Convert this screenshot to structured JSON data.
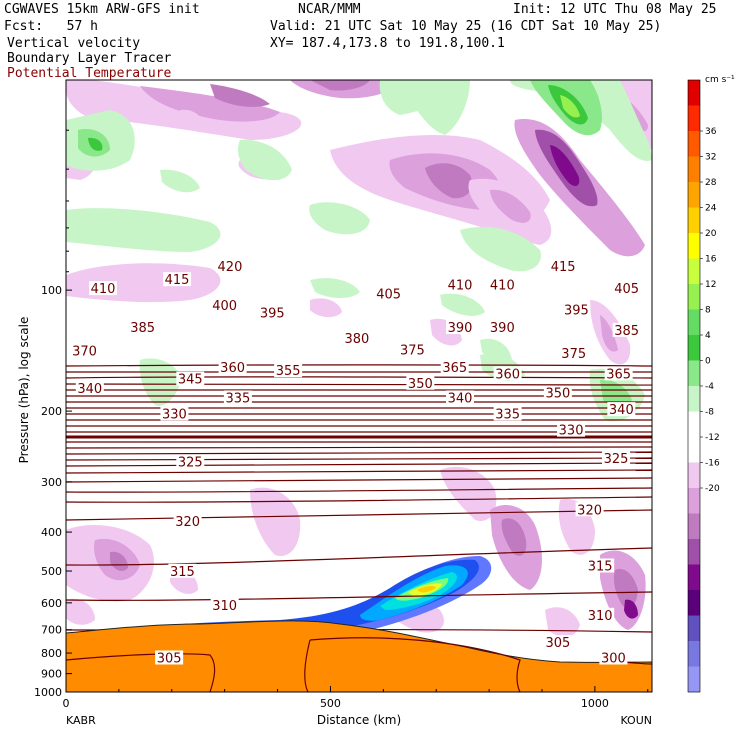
{
  "header": {
    "model": "CGWAVES 15km ARW-GFS init",
    "org": "NCAR/MMM",
    "init": "Init: 12 UTC Thu 08 May 25",
    "fcst": "Fcst:   57 h",
    "valid": "Valid: 21 UTC Sat 10 May 25 (16 CDT Sat 10 May 25)",
    "field1": "Vertical velocity",
    "xy": "XY= 187.4,173.8 to 191.8,100.1",
    "field2": "Boundary Layer Tracer",
    "field3": "Potential Temperature"
  },
  "colors": {
    "theta": "#6b0000",
    "terrain": "#ff8c00",
    "field3_text": "#8b0000"
  },
  "chart_data": {
    "type": "heatmap",
    "xlabel": "Distance (km)",
    "ylabel": "Pressure (hPa), log scale",
    "x_ticks": [
      "0",
      "500",
      "1000"
    ],
    "xlim": [
      0,
      1120
    ],
    "y_ticks": [
      "100",
      "200",
      "300",
      "400",
      "500",
      "600",
      "700",
      "800",
      "900",
      "1000"
    ],
    "ylim": [
      1000,
      30
    ],
    "y_scale": "log",
    "endpoints": {
      "left": "KABR",
      "right": "KOUN"
    },
    "colorbar": {
      "units": "cm s⁻¹",
      "tick_labels": [
        "36",
        "32",
        "28",
        "24",
        "20",
        "16",
        "12",
        "8",
        "4",
        "0",
        "-4",
        "-8",
        "-12",
        "-16",
        "-20"
      ],
      "colors": [
        "#e00000",
        "#ff2a00",
        "#ff5a00",
        "#ff8000",
        "#ffa500",
        "#ffd000",
        "#ffff00",
        "#c8ff3c",
        "#96f050",
        "#64dc64",
        "#3cc83c",
        "#8ae88a",
        "#c8f5c8",
        "#ffffff",
        "#ffffff",
        "#f0c8f0",
        "#dca0dc",
        "#c07ac0",
        "#a050a8",
        "#800a8c",
        "#5a007a",
        "#6050c0",
        "#7878e0",
        "#9696f5"
      ]
    },
    "theta_labels": [
      {
        "value": "415",
        "x": 210,
        "p": 95
      },
      {
        "value": "420",
        "x": 310,
        "p": 88
      },
      {
        "value": "410",
        "x": 70,
        "p": 100
      },
      {
        "value": "400",
        "x": 300,
        "p": 110
      },
      {
        "value": "395",
        "x": 390,
        "p": 115
      },
      {
        "value": "405",
        "x": 610,
        "p": 103
      },
      {
        "value": "410",
        "x": 745,
        "p": 98
      },
      {
        "value": "410",
        "x": 825,
        "p": 98
      },
      {
        "value": "415",
        "x": 940,
        "p": 88
      },
      {
        "value": "405",
        "x": 1060,
        "p": 100
      },
      {
        "value": "385",
        "x": 145,
        "p": 125
      },
      {
        "value": "390",
        "x": 745,
        "p": 125
      },
      {
        "value": "390",
        "x": 825,
        "p": 125
      },
      {
        "value": "395",
        "x": 965,
        "p": 113
      },
      {
        "value": "385",
        "x": 1060,
        "p": 127
      },
      {
        "value": "370",
        "x": 35,
        "p": 143
      },
      {
        "value": "380",
        "x": 550,
        "p": 133
      },
      {
        "value": "375",
        "x": 655,
        "p": 142
      },
      {
        "value": "375",
        "x": 960,
        "p": 145
      },
      {
        "value": "360",
        "x": 315,
        "p": 157
      },
      {
        "value": "355",
        "x": 420,
        "p": 160
      },
      {
        "value": "365",
        "x": 735,
        "p": 157
      },
      {
        "value": "360",
        "x": 835,
        "p": 163
      },
      {
        "value": "365",
        "x": 1045,
        "p": 163
      },
      {
        "value": "340",
        "x": 45,
        "p": 177
      },
      {
        "value": "345",
        "x": 235,
        "p": 168
      },
      {
        "value": "335",
        "x": 325,
        "p": 187
      },
      {
        "value": "350",
        "x": 670,
        "p": 172
      },
      {
        "value": "340",
        "x": 745,
        "p": 187
      },
      {
        "value": "350",
        "x": 930,
        "p": 182
      },
      {
        "value": "340",
        "x": 1050,
        "p": 200
      },
      {
        "value": "330",
        "x": 205,
        "p": 205
      },
      {
        "value": "335",
        "x": 835,
        "p": 205
      },
      {
        "value": "330",
        "x": 955,
        "p": 225
      },
      {
        "value": "325",
        "x": 235,
        "p": 270
      },
      {
        "value": "325",
        "x": 1040,
        "p": 265
      },
      {
        "value": "320",
        "x": 230,
        "p": 380
      },
      {
        "value": "320",
        "x": 990,
        "p": 355
      },
      {
        "value": "315",
        "x": 220,
        "p": 505
      },
      {
        "value": "315",
        "x": 1010,
        "p": 490
      },
      {
        "value": "310",
        "x": 300,
        "p": 615
      },
      {
        "value": "310",
        "x": 1010,
        "p": 650
      },
      {
        "value": "305",
        "x": 195,
        "p": 830
      },
      {
        "value": "305",
        "x": 930,
        "p": 760
      },
      {
        "value": "300",
        "x": 1035,
        "p": 830
      }
    ]
  }
}
